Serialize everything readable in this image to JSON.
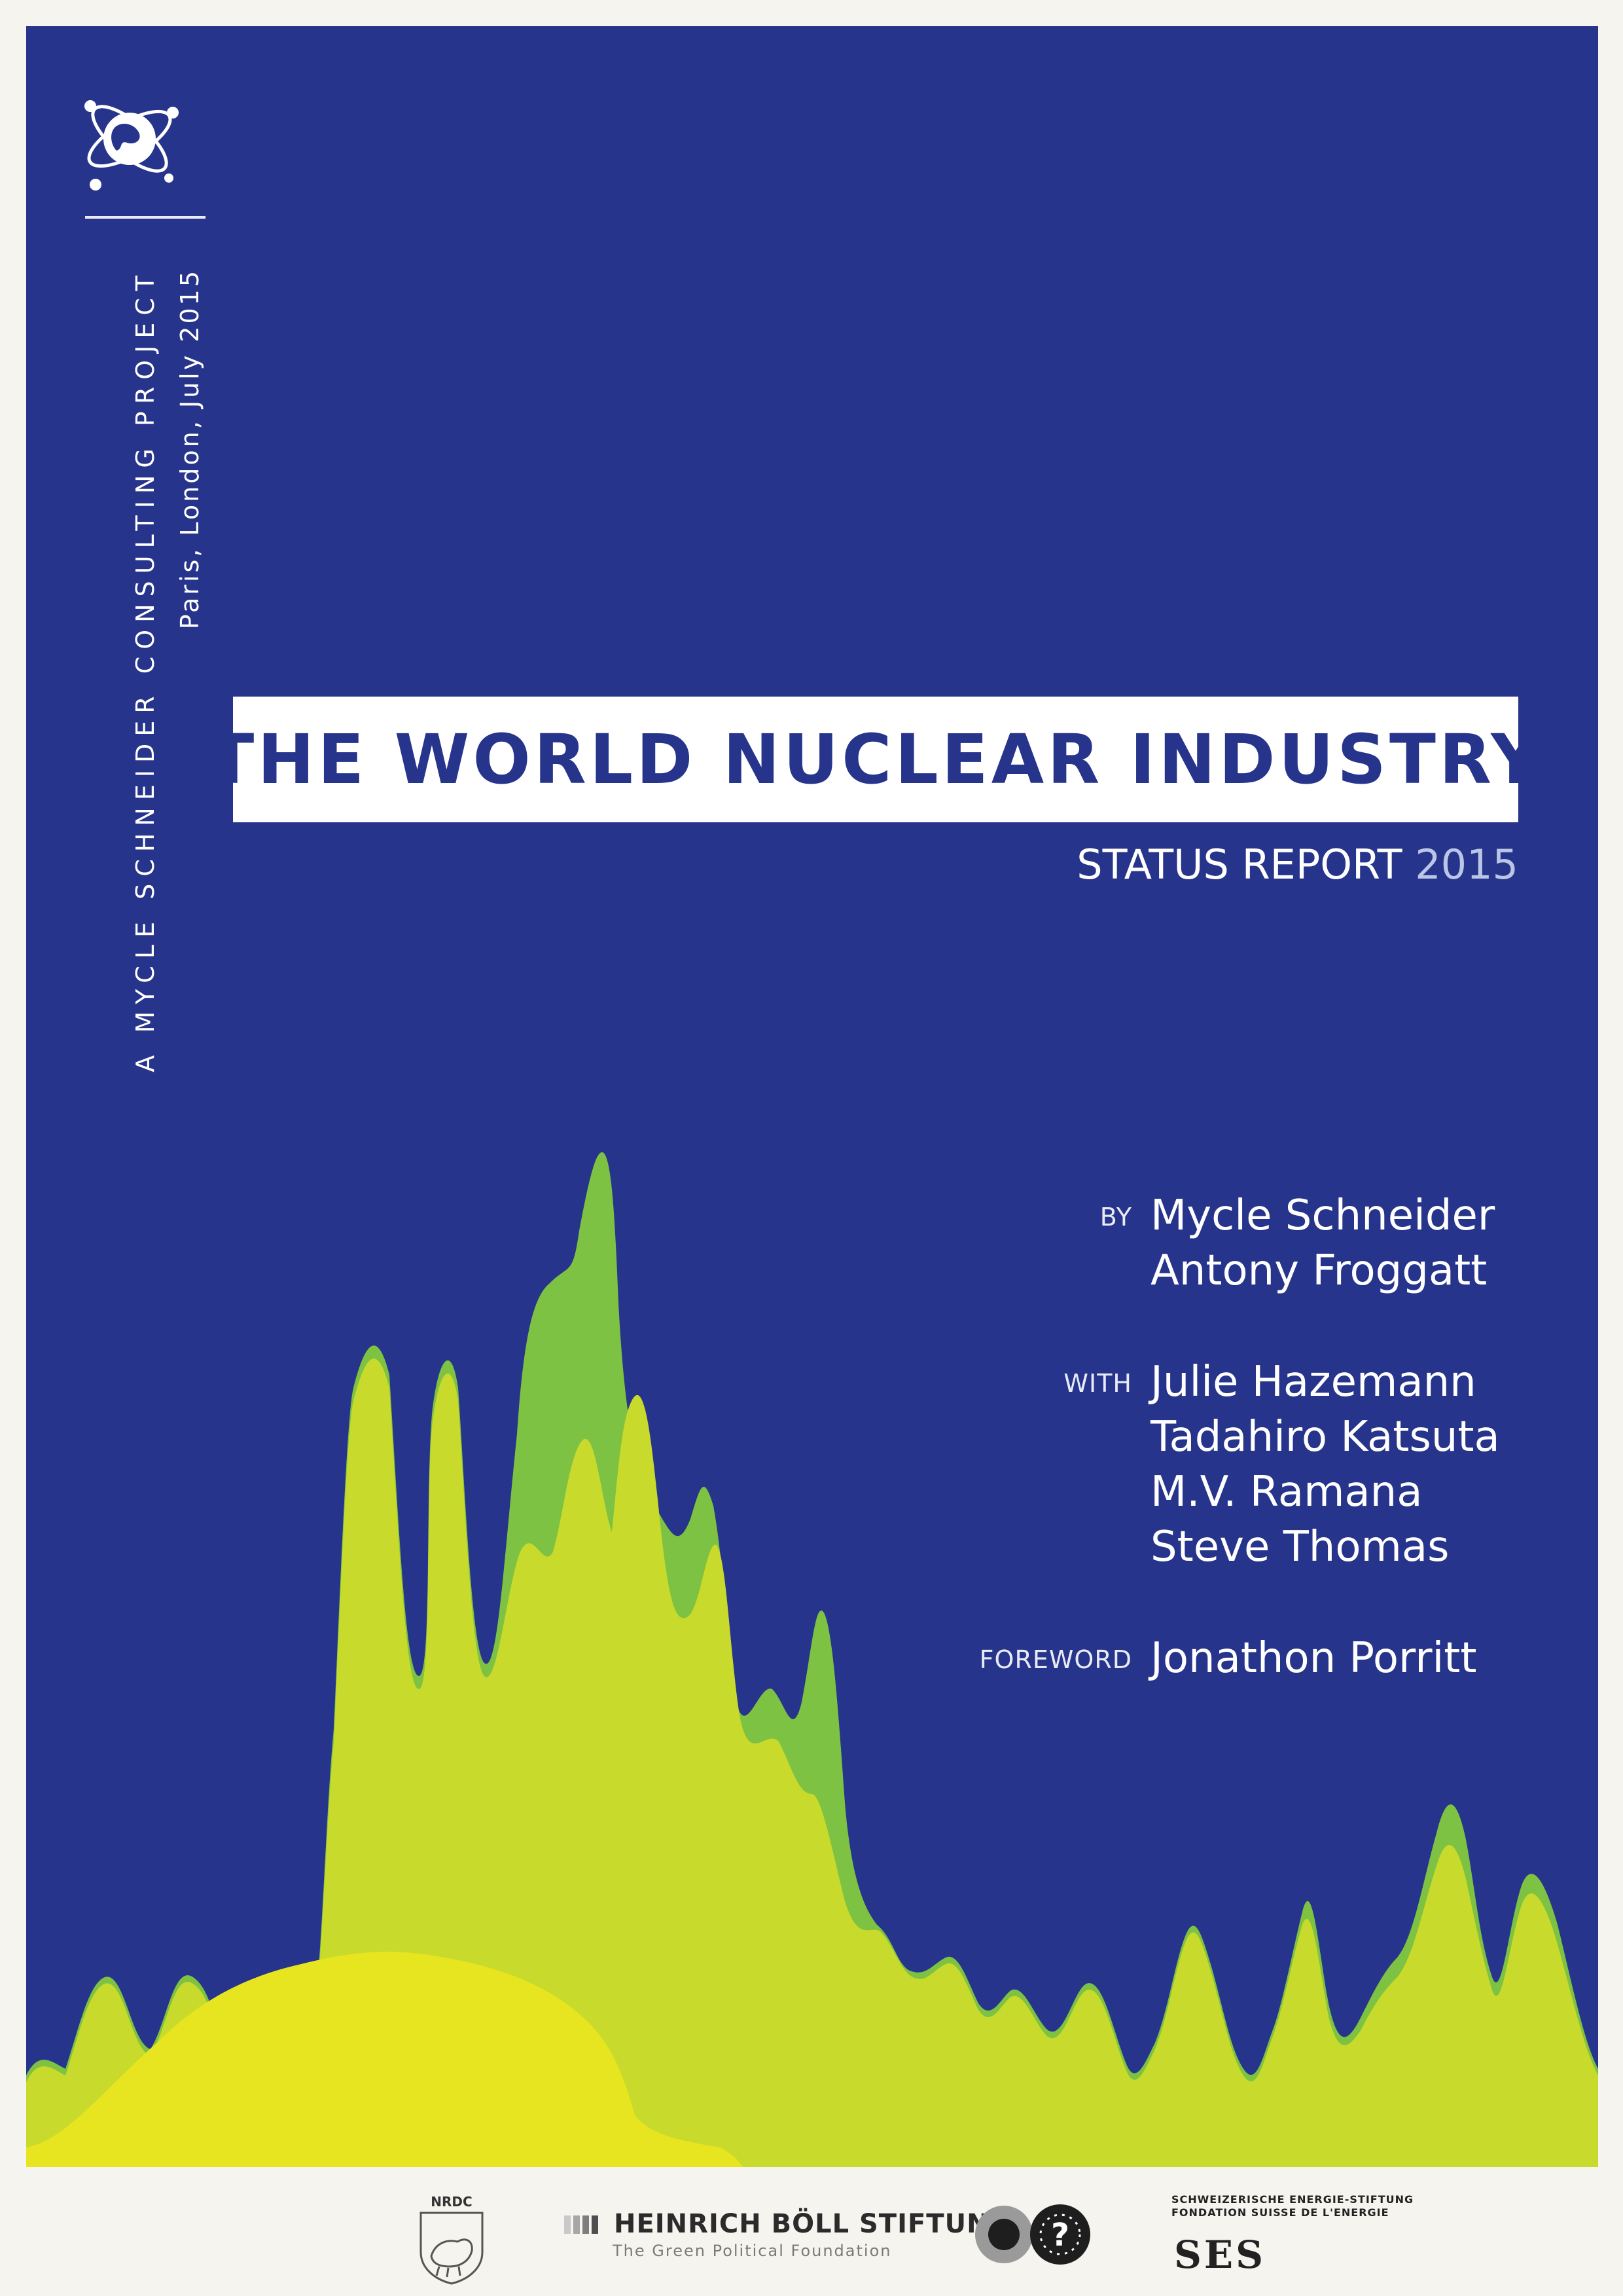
{
  "cover": {
    "background_color": "#27348b",
    "logo_icon": "atom-globe-icon",
    "series_line": "A MYCLE SCHNEIDER CONSULTING PROJECT",
    "place_date": "Paris, London, July 2015",
    "title": "THE WORLD NUCLEAR INDUSTRY",
    "subtitle_text": "STATUS REPORT",
    "subtitle_year": "2015",
    "credits": [
      {
        "label": "BY",
        "names": [
          "Mycle Schneider",
          "Antony Froggatt"
        ]
      },
      {
        "label": "WITH",
        "names": [
          "Julie Hazemann",
          "Tadahiro Katsuta",
          "M.V. Ramana",
          "Steve Thomas"
        ]
      },
      {
        "label": "FOREWORD",
        "names": [
          "Jonathon Porritt"
        ]
      }
    ],
    "decorative_chart": {
      "type": "area",
      "colors": [
        "#7dc242",
        "#c8da2b",
        "#e6e51f"
      ]
    }
  },
  "footer": {
    "nrdc_label": "NRDC",
    "nrdc_icon": "polar-bear-icon",
    "boell_title": "HEINRICH BÖLL STIFTUNG",
    "boell_subtitle": "The Green Political Foundation",
    "seal_icons": [
      "sunflower-icon",
      "eu-stars-icon"
    ],
    "ses_line1": "SCHWEIZERISCHE ENERGIE-STIFTUNG",
    "ses_line2": "FONDATION SUISSE DE L'ENERGIE",
    "ses_mark": "SES"
  }
}
